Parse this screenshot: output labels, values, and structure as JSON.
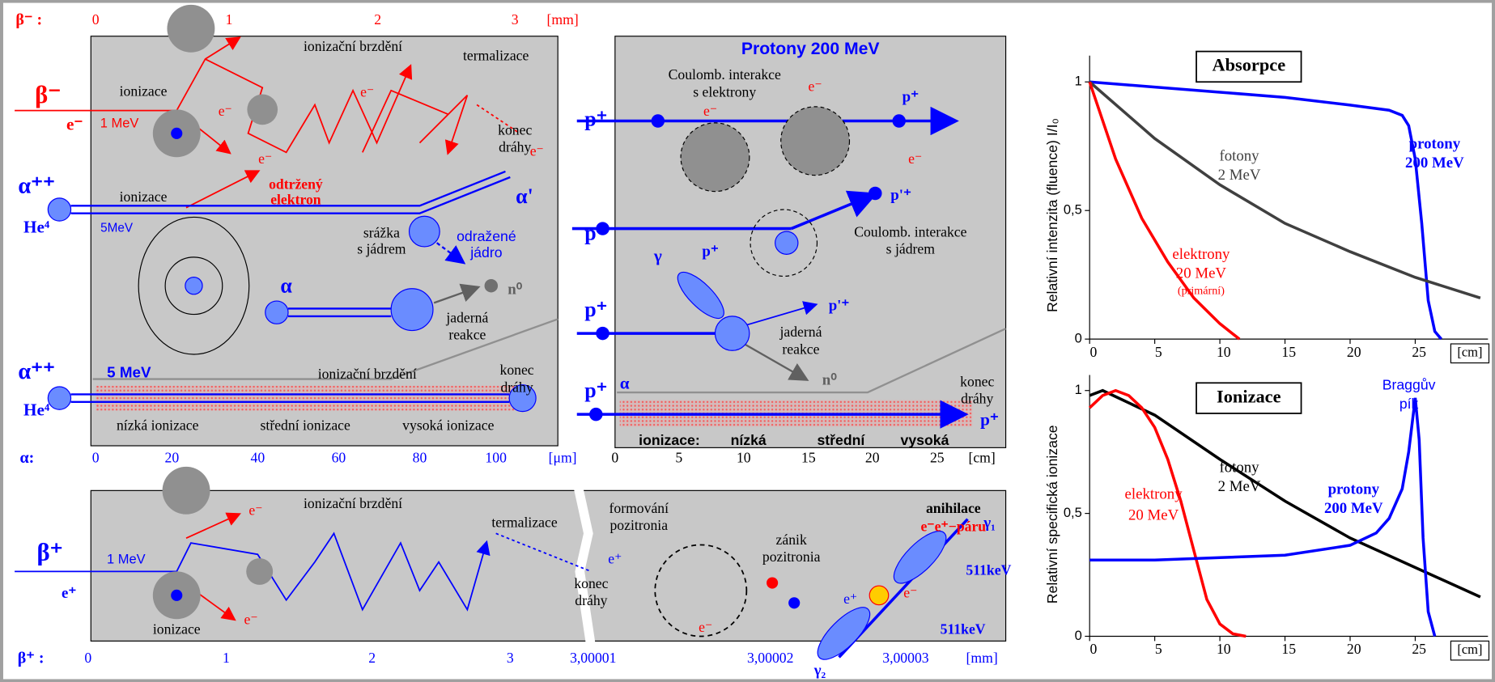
{
  "diagram": {
    "beta_alpha": {
      "scale_top": {
        "label": "β⁻ :",
        "ticks": [
          "0",
          "1",
          "2",
          "3"
        ],
        "unit": "[mm]"
      },
      "labels": [
        "ionizační brzdění",
        "termalizace",
        "β⁻",
        "ionizace",
        "e⁻",
        "1 MeV",
        "konec",
        "dráhy",
        "α⁺⁺",
        "ionizace",
        "odtržený",
        "elektron",
        "α'",
        "He⁴",
        "5MeV",
        "srážka",
        "s jádrem",
        "odražené",
        "jádro",
        "α",
        "n⁰",
        "jaderná",
        "reakce",
        "α⁺⁺",
        "5 MeV",
        "ionizační brzdění",
        "konec",
        "dráhy",
        "He⁴",
        "nízká ionizace",
        "střední ionizace",
        "vysoká ionizace",
        "e⁻",
        "e⁻",
        "e⁻",
        "e⁻"
      ],
      "scale_bottom": {
        "label": "α:",
        "ticks": [
          "0",
          "20",
          "40",
          "60",
          "80",
          "100"
        ],
        "unit": "[μm]"
      }
    },
    "protons": {
      "labels": [
        "Protony 200 MeV",
        "Coulomb. interakce",
        "s elektrony",
        "p⁺",
        "e⁻",
        "e⁻",
        "p⁺",
        "e⁻",
        "p⁺",
        "p'⁺",
        "Coulomb. interakce",
        "s jádrem",
        "p⁺",
        "γ",
        "p⁺",
        "p'⁺",
        "jaderná",
        "reakce",
        "α",
        "n⁰",
        "konec",
        "dráhy",
        "p⁺",
        "p⁺",
        "ionizace:",
        "nízká",
        "střední",
        "vysoká"
      ],
      "scale_bottom": {
        "ticks": [
          "0",
          "5",
          "10",
          "15",
          "20",
          "25"
        ],
        "unit": "[cm]"
      }
    },
    "beta_plus": {
      "labels": [
        "ionizační brzdění",
        "termalizace",
        "formování",
        "pozitronia",
        "anihilace",
        "e⁻e⁺−páru",
        "γ₁",
        "β⁺",
        "1 MeV",
        "e⁺",
        "zánik",
        "pozitronia",
        "511keV",
        "konec",
        "dráhy",
        "ionizace",
        "e⁻",
        "e⁻",
        "e⁻",
        "511keV",
        "γ₂",
        "e⁺",
        "e⁻",
        "e⁺"
      ],
      "scale_bottom": {
        "label": "β⁺ :",
        "ticks": [
          "0",
          "1",
          "2",
          "3",
          "3,00001",
          "3,00002",
          "3,00003"
        ],
        "unit": "[mm]"
      }
    }
  },
  "chart_data": [
    {
      "type": "line",
      "title": "Absorpce",
      "y_label": "Relativní intenzita (fluence) I/I₀",
      "x_unit": "[cm]",
      "xlim": [
        0,
        30
      ],
      "ylim": [
        0,
        1.08
      ],
      "xticks": [
        0,
        5,
        10,
        15,
        20,
        25
      ],
      "yticks": [
        0,
        {
          "value": 0.5,
          "label": "0,5"
        },
        1
      ],
      "series": [
        {
          "label": [
            "protony",
            "200 MeV"
          ],
          "color": "#0000ff",
          "x": [
            0,
            5,
            10,
            15,
            20,
            23,
            24,
            24.5,
            25,
            25.5,
            26,
            26.5,
            27
          ],
          "values": [
            1,
            0.98,
            0.96,
            0.94,
            0.91,
            0.89,
            0.87,
            0.83,
            0.7,
            0.45,
            0.15,
            0.03,
            0
          ]
        },
        {
          "label": [
            "fotony",
            "2 MeV"
          ],
          "color": "#404040",
          "x": [
            0,
            5,
            10,
            15,
            20,
            25,
            30
          ],
          "values": [
            1,
            0.78,
            0.6,
            0.45,
            0.34,
            0.24,
            0.16
          ]
        },
        {
          "label": [
            "elektrony",
            "20 MeV",
            "(primární)"
          ],
          "color": "#ff0000",
          "x": [
            0,
            2,
            4,
            6,
            8,
            10,
            11.5
          ],
          "values": [
            1,
            0.7,
            0.47,
            0.3,
            0.16,
            0.06,
            0
          ]
        }
      ]
    },
    {
      "type": "line",
      "title": "Ionizace",
      "y_label": "Relativní specifická ionizace",
      "x_unit": "[cm]",
      "annotation": [
        "Braggův",
        "pík"
      ],
      "xlim": [
        0,
        30
      ],
      "ylim": [
        0,
        1.04
      ],
      "xticks": [
        0,
        5,
        10,
        15,
        20,
        25
      ],
      "yticks": [
        0,
        {
          "value": 0.5,
          "label": "0,5"
        },
        1
      ],
      "series": [
        {
          "label": [
            "fotony",
            "2 MeV"
          ],
          "color": "#000000",
          "x": [
            0,
            1,
            5,
            10,
            15,
            20,
            25,
            30
          ],
          "values": [
            0.98,
            1,
            0.9,
            0.72,
            0.55,
            0.4,
            0.28,
            0.16
          ]
        },
        {
          "label": [
            "elektrony",
            "20 MeV"
          ],
          "color": "#ff0000",
          "x": [
            0,
            1,
            2,
            3,
            4,
            5,
            6,
            7,
            8,
            9,
            10,
            11,
            12
          ],
          "values": [
            0.93,
            0.98,
            1,
            0.98,
            0.93,
            0.85,
            0.72,
            0.55,
            0.35,
            0.15,
            0.05,
            0.01,
            0
          ]
        },
        {
          "label": [
            "protony",
            "200 MeV"
          ],
          "color": "#0000ff",
          "x": [
            0,
            5,
            10,
            15,
            20,
            22,
            23,
            24,
            24.5,
            25,
            25.3,
            25.6,
            26,
            26.5
          ],
          "values": [
            0.31,
            0.31,
            0.32,
            0.33,
            0.37,
            0.42,
            0.48,
            0.6,
            0.75,
            0.97,
            0.8,
            0.4,
            0.1,
            0
          ]
        }
      ]
    }
  ]
}
